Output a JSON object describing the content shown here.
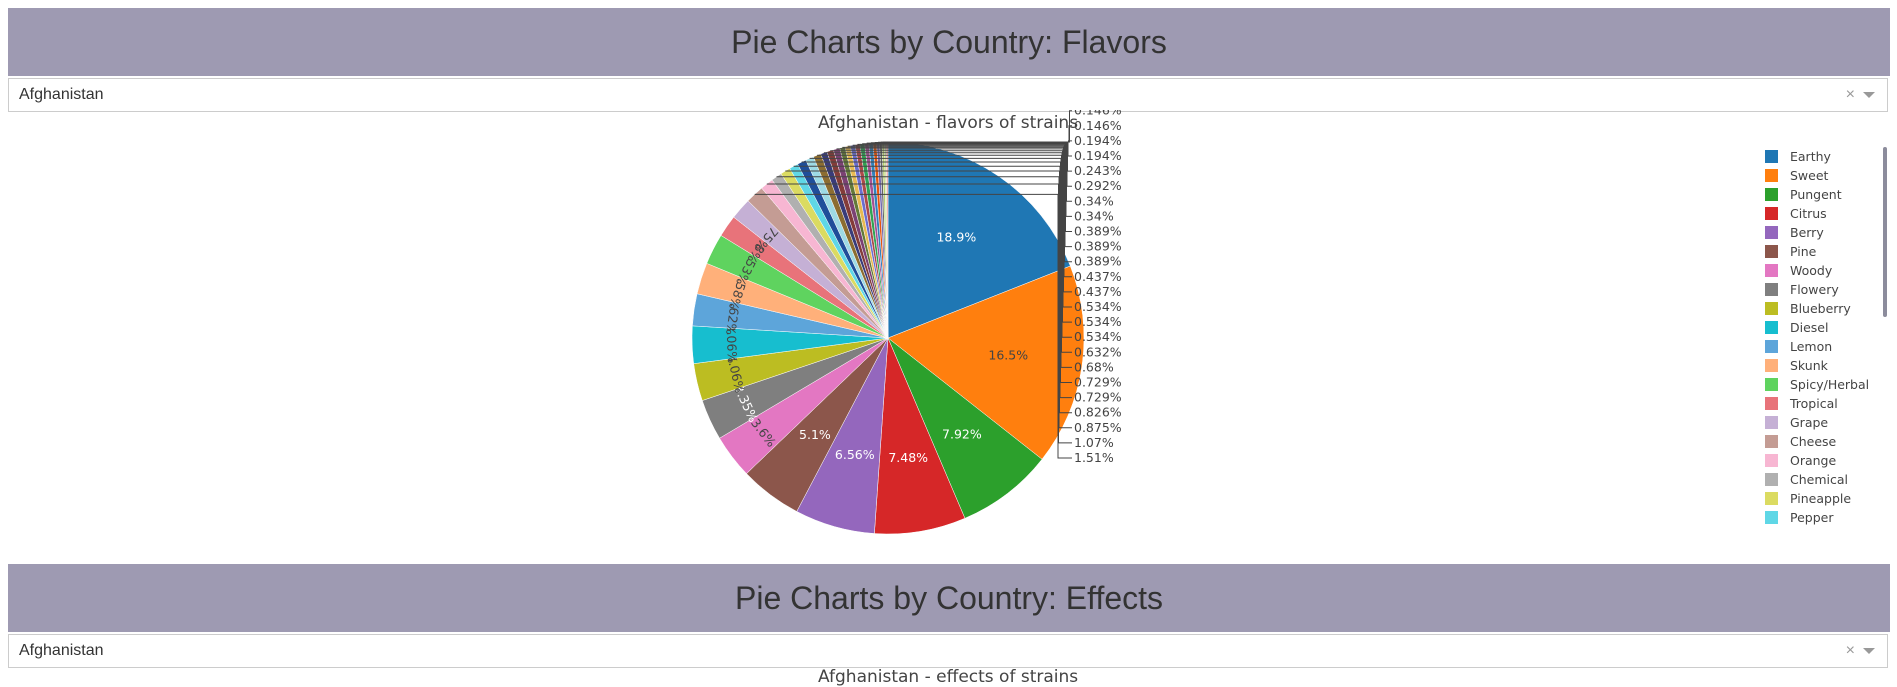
{
  "section1": {
    "header": "Pie Charts by Country: Flavors",
    "dropdown_value": "Afghanistan",
    "clear_glyph": "×"
  },
  "section2": {
    "header": "Pie Charts by Country: Effects",
    "dropdown_value": "Afghanistan",
    "clear_glyph": "×",
    "chart_title": "Afghanistan - effects of strains"
  },
  "chart_data": {
    "type": "pie",
    "title": "Afghanistan - flavors of strains",
    "legend_position": "right",
    "slices": [
      {
        "label": "Earthy",
        "value": 18.9,
        "color": "#1f77b4",
        "text": "18.9%"
      },
      {
        "label": "Sweet",
        "value": 16.5,
        "color": "#ff7f0e",
        "text": "16.5%"
      },
      {
        "label": "Pungent",
        "value": 7.92,
        "color": "#2ca02c",
        "text": "7.92%"
      },
      {
        "label": "Citrus",
        "value": 7.48,
        "color": "#d62728",
        "text": "7.48%"
      },
      {
        "label": "Berry",
        "value": 6.56,
        "color": "#9467bd",
        "text": "6.56%"
      },
      {
        "label": "Pine",
        "value": 5.1,
        "color": "#8c564b",
        "text": "5.1%"
      },
      {
        "label": "Woody",
        "value": 3.6,
        "color": "#e377c2",
        "text": "3.6%"
      },
      {
        "label": "Flowery",
        "value": 3.35,
        "color": "#7f7f7f",
        "text": "3.35%"
      },
      {
        "label": "Blueberry",
        "value": 3.06,
        "color": "#bcbd22",
        "text": "3.06%"
      },
      {
        "label": "Diesel",
        "value": 3.06,
        "color": "#17becf",
        "text": "3.06%"
      },
      {
        "label": "Lemon",
        "value": 2.62,
        "color": "#5da5da",
        "text": "2.62%"
      },
      {
        "label": "Skunk",
        "value": 2.58,
        "color": "#ffb07a",
        "text": "2.58%"
      },
      {
        "label": "Spicy/Herbal",
        "value": 2.53,
        "color": "#5fd35f",
        "text": "2.53%"
      },
      {
        "label": "Tropical",
        "value": 1.8,
        "color": "#e8737a",
        "text": "1.8%"
      },
      {
        "label": "Grape",
        "value": 1.75,
        "color": "#c5b0d5",
        "text": "1.75%"
      },
      {
        "label": "Cheese",
        "value": 1.51,
        "color": "#c49c94",
        "text": "1.51%"
      },
      {
        "label": "Orange",
        "value": 1.07,
        "color": "#f7b6d2",
        "text": "1.07%"
      },
      {
        "label": "Chemical",
        "value": 0.875,
        "color": "#b0b0b0",
        "text": "0.875%"
      },
      {
        "label": "Pineapple",
        "value": 0.826,
        "color": "#dbdb61",
        "text": "0.826%"
      },
      {
        "label": "Pepper",
        "value": 0.729,
        "color": "#5fd7e6",
        "text": "0.729%"
      },
      {
        "label": "",
        "value": 0.729,
        "color": "#1f4e9a",
        "text": "0.729%"
      },
      {
        "label": "",
        "value": 0.68,
        "color": "#9edae5",
        "text": "0.68%"
      },
      {
        "label": "",
        "value": 0.632,
        "color": "#8c6d31",
        "text": "0.632%"
      },
      {
        "label": "",
        "value": 0.534,
        "color": "#393b79",
        "text": "0.534%"
      },
      {
        "label": "",
        "value": 0.534,
        "color": "#843c39",
        "text": "0.534%"
      },
      {
        "label": "",
        "value": 0.534,
        "color": "#7b4173",
        "text": "0.534%"
      },
      {
        "label": "",
        "value": 0.437,
        "color": "#637939",
        "text": "0.437%"
      },
      {
        "label": "",
        "value": 0.437,
        "color": "#e7ba52",
        "text": "0.437%"
      },
      {
        "label": "",
        "value": 0.389,
        "color": "#6b6ecf",
        "text": "0.389%"
      },
      {
        "label": "",
        "value": 0.389,
        "color": "#ad494a",
        "text": "0.389%"
      },
      {
        "label": "",
        "value": 0.389,
        "color": "#31a354",
        "text": "0.389%"
      },
      {
        "label": "",
        "value": 0.34,
        "color": "#a55194",
        "text": "0.34%"
      },
      {
        "label": "",
        "value": 0.34,
        "color": "#3182bd",
        "text": "0.34%"
      },
      {
        "label": "",
        "value": 0.292,
        "color": "#e6550d",
        "text": "0.292%"
      },
      {
        "label": "",
        "value": 0.243,
        "color": "#756bb1",
        "text": "0.243%"
      },
      {
        "label": "",
        "value": 0.194,
        "color": "#636363",
        "text": "0.194%"
      },
      {
        "label": "",
        "value": 0.194,
        "color": "#b5cf6b",
        "text": "0.194%"
      },
      {
        "label": "",
        "value": 0.146,
        "color": "#cedb9c",
        "text": "0.146%"
      },
      {
        "label": "",
        "value": 0.146,
        "color": "#e7969c",
        "text": "0.146%"
      }
    ]
  }
}
